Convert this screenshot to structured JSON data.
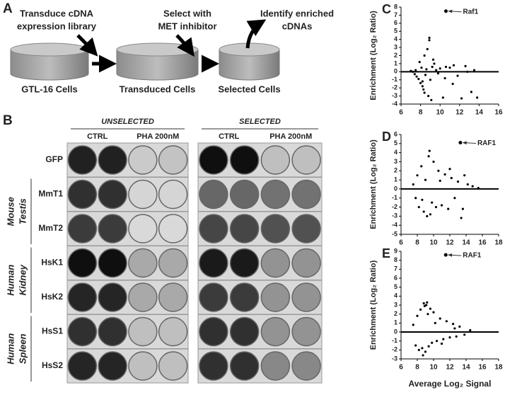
{
  "panel_a": {
    "label": "A",
    "steps": [
      [
        "Transduce cDNA",
        "expression library"
      ],
      [
        "Select with",
        "MET inhibitor"
      ],
      [
        "Identify enriched",
        "cDNAs"
      ]
    ],
    "cells": [
      "GTL-16 Cells",
      "Transduced Cells",
      "Selected Cells"
    ]
  },
  "panel_b": {
    "label": "B",
    "conditions": [
      "UNSELECTED",
      "SELECTED"
    ],
    "treatments": [
      "CTRL",
      "PHA 200nM"
    ],
    "rows": [
      "GFP",
      "MmT1",
      "MmT2",
      "HsK1",
      "HsK2",
      "HsS1",
      "HsS2"
    ],
    "groups": [
      [
        "Mouse",
        "Testis"
      ],
      [
        "Human",
        "Kidney"
      ],
      [
        "Human",
        "Spleen"
      ]
    ]
  },
  "chart_data": [
    {
      "panel_label": "C",
      "type": "scatter",
      "color": "#000000",
      "x": [
        7.0,
        7.2,
        7.4,
        7.5,
        7.6,
        7.8,
        8.0,
        8.1,
        8.2,
        8.3,
        8.4,
        8.5,
        8.6,
        8.8,
        9.0,
        9.1,
        9.2,
        9.4,
        9.6,
        9.8,
        10.0,
        10.3,
        10.6,
        11.0,
        11.4,
        11.8,
        12.2,
        12.6,
        13.2,
        13.8,
        8.9,
        8.9,
        9.3,
        8.4,
        8.7,
        7.9,
        8.2,
        10.5,
        11.3,
        12.8,
        13.5
      ],
      "y": [
        0.1,
        0.0,
        -0.3,
        0.2,
        -0.6,
        -0.9,
        -1.4,
        0.5,
        -1.8,
        -2.2,
        -2.6,
        -0.4,
        0.3,
        -3.0,
        -1.0,
        -3.5,
        0.6,
        1.0,
        0.2,
        -0.2,
        0.4,
        -3.2,
        0.6,
        0.5,
        0.8,
        -0.5,
        -3.3,
        0.7,
        -2.5,
        -3.2,
        3.9,
        4.2,
        1.5,
        2.0,
        2.8,
        1.2,
        -1.2,
        -0.8,
        -1.5,
        0.0,
        0.2
      ],
      "xlim": [
        6,
        16
      ],
      "xticks": [
        6,
        8,
        10,
        12,
        14,
        16
      ],
      "ylim": [
        -4,
        8
      ],
      "yticks": [
        -4,
        -3,
        -2,
        -1,
        0,
        1,
        2,
        3,
        4,
        5,
        6,
        7,
        8
      ],
      "ylabel": "Enrichment (Log₂ Ratio)",
      "annotation": {
        "text": "Raf1",
        "x": 10.6,
        "y": 7.5
      }
    },
    {
      "panel_label": "D",
      "type": "scatter",
      "color": "#000000",
      "x": [
        7.5,
        7.8,
        8.0,
        8.2,
        8.5,
        8.8,
        9.0,
        9.2,
        9.5,
        9.8,
        10.0,
        10.3,
        10.6,
        11.0,
        11.4,
        11.8,
        12.2,
        12.6,
        13.0,
        13.4,
        13.8,
        14.2,
        9.4,
        9.6,
        8.6,
        10.8,
        12.0,
        13.6,
        14.8,
        15.5
      ],
      "y": [
        0.5,
        -1.0,
        1.5,
        -2.0,
        2.5,
        -2.5,
        1.0,
        -3.0,
        4.2,
        -1.5,
        3.0,
        -2.0,
        2.0,
        -1.8,
        1.6,
        -2.2,
        1.2,
        -1.0,
        0.8,
        -3.2,
        1.5,
        0.5,
        3.6,
        -2.8,
        -1.2,
        0.9,
        2.2,
        -2.2,
        0.3,
        0.1
      ],
      "xlim": [
        6,
        18
      ],
      "xticks": [
        6,
        8,
        10,
        12,
        14,
        16,
        18
      ],
      "ylim": [
        -5,
        6
      ],
      "yticks": [
        -5,
        -4,
        -3,
        -2,
        -1,
        0,
        1,
        2,
        3,
        4,
        5,
        6
      ],
      "ylabel": "Enrichment (Log₂ Ratio)",
      "annotation": {
        "text": "RAF1",
        "x": 13.3,
        "y": 5.1
      }
    },
    {
      "panel_label": "E",
      "type": "scatter",
      "color": "#000000",
      "x": [
        7.5,
        7.8,
        8.0,
        8.2,
        8.4,
        8.6,
        8.8,
        9.0,
        9.2,
        9.4,
        9.6,
        9.8,
        10.0,
        10.4,
        10.8,
        11.2,
        11.6,
        12.0,
        12.4,
        12.8,
        13.2,
        13.8,
        14.5,
        8.9,
        9.1,
        9.3,
        8.7,
        10.2,
        11.0,
        12.6
      ],
      "y": [
        0.8,
        -1.5,
        1.8,
        -2.0,
        2.5,
        -1.8,
        3.2,
        -2.2,
        3.3,
        -1.6,
        2.6,
        -1.2,
        2.2,
        -1.0,
        1.5,
        -0.8,
        1.2,
        -0.6,
        0.9,
        -0.5,
        0.6,
        -0.3,
        0.2,
        2.9,
        3.0,
        2.0,
        -2.6,
        1.0,
        -1.3,
        0.4
      ],
      "xlim": [
        6,
        18
      ],
      "xticks": [
        6,
        8,
        10,
        12,
        14,
        16,
        18
      ],
      "ylim": [
        -3,
        9
      ],
      "yticks": [
        -3,
        -2,
        -1,
        0,
        1,
        2,
        3,
        4,
        5,
        6,
        7,
        8,
        9
      ],
      "xlabel": "Average Log₂ Signal",
      "ylabel": "Enrichment (Log₂ Ratio)",
      "annotation": {
        "text": "RAF1",
        "x": 11.5,
        "y": 8.6
      }
    }
  ]
}
